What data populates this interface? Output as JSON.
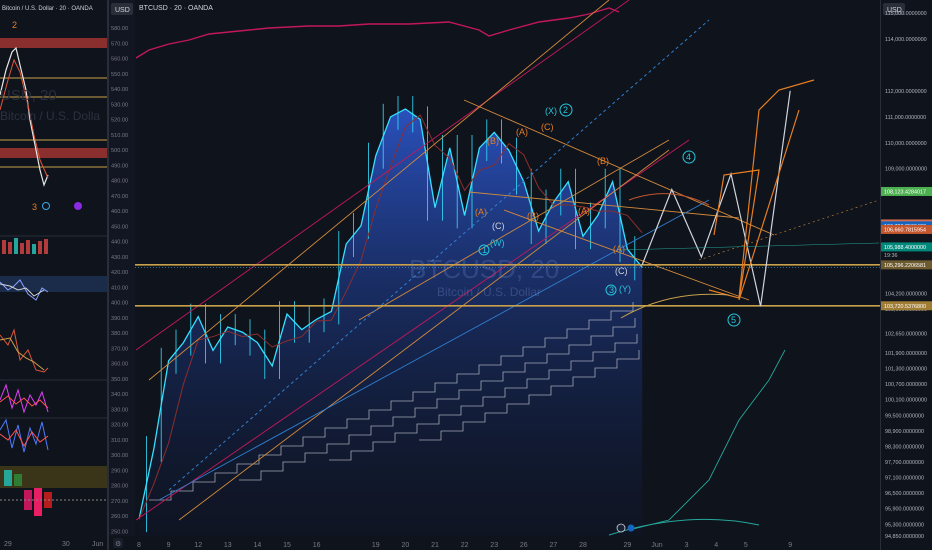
{
  "left_panel": {
    "title": "Bitcoin / U.S. Dollar · 20 · OANDA",
    "watermark_symbol": "USD, 20",
    "watermark_name": "Bitcoin / U.S. Dolla",
    "wave_top": "2",
    "wave_bottom": "3",
    "x_labels": [
      "29",
      "30",
      "Jun"
    ]
  },
  "main_panel": {
    "symbol": "BTCUSD · 20 · OANDA",
    "currency": "USD",
    "watermark_symbol": "BTCUSD, 20",
    "watermark_name": "Bitcoin / U.S. Dollar",
    "wave_labels": {
      "X": "(X)",
      "two": "2",
      "B_top": "(B)",
      "A_top": "(A)",
      "C_top": "(C)",
      "B_right": "(B)",
      "A_mid": "(A)",
      "B_mid": "(B)",
      "A_left": "(A)",
      "C_left": "(C)",
      "W": "(W)",
      "one": "1",
      "A_right": "(A)",
      "C_right": "(C)",
      "three": "3",
      "Y": "(Y)",
      "four": "4",
      "five": "5"
    }
  },
  "right_axis": {
    "label": "USD",
    "ticks": [
      {
        "label": "115,000.0000000",
        "v": 115000
      },
      {
        "label": "114,000.0000000",
        "v": 114000
      },
      {
        "label": "112,000.0000000",
        "v": 112000
      },
      {
        "label": "111,000.0000000",
        "v": 111000
      },
      {
        "label": "110,000.0000000",
        "v": 110000
      },
      {
        "label": "109,000.0000000",
        "v": 109000
      },
      {
        "label": "104,200.0000000",
        "v": 104200
      },
      {
        "label": "103,600.0000000",
        "v": 103600
      },
      {
        "label": "102,650.0000000",
        "v": 102650
      },
      {
        "label": "101,900.0000000",
        "v": 101900
      },
      {
        "label": "101,300.0000000",
        "v": 101300
      },
      {
        "label": "100,700.0000000",
        "v": 100700
      },
      {
        "label": "100,100.0000000",
        "v": 100100
      },
      {
        "label": "99,500.0000000",
        "v": 99500
      },
      {
        "label": "98,900.0000000",
        "v": 98900
      },
      {
        "label": "98,300.0000000",
        "v": 98300
      },
      {
        "label": "97,700.0000000",
        "v": 97700
      },
      {
        "label": "97,100.0000000",
        "v": 97100
      },
      {
        "label": "96,500.0000000",
        "v": 96500
      },
      {
        "label": "95,900.0000000",
        "v": 95900
      },
      {
        "label": "95,300.0000000",
        "v": 95300
      },
      {
        "label": "94,850.0000000",
        "v": 94850
      }
    ],
    "badges": [
      {
        "label": "108,123.4284017",
        "v": 108123,
        "color": "#4caf50"
      },
      {
        "label": "106,872.1460743",
        "v": 106872,
        "color": "#d26a4b"
      },
      {
        "label": "106,799.2509433",
        "v": 106799,
        "color": "#1565c0"
      },
      {
        "label": "106,660.7815954",
        "v": 106660,
        "color": "#c2562f"
      },
      {
        "label": "105,988.4000000",
        "v": 105988,
        "color": "#00897b"
      },
      {
        "label": "105,296.2206581",
        "v": 105296,
        "color": "#6d5b2f"
      },
      {
        "label": "103,720.5376800",
        "v": 103720,
        "color": "#a07d35"
      }
    ],
    "badge_sub": "19:36"
  },
  "chart_data": {
    "type": "line",
    "title": "BTCUSD · 20 · OANDA",
    "xlabel": "",
    "ylabel": "",
    "x_ticks": [
      "8",
      "9",
      "12",
      "13",
      "14",
      "15",
      "16",
      "19",
      "20",
      "21",
      "22",
      "23",
      "26",
      "27",
      "28",
      "29",
      "Jun",
      "3",
      "4",
      "5",
      "9"
    ],
    "x_tick_index": [
      0,
      2,
      4,
      6,
      8,
      10,
      12,
      16,
      18,
      20,
      22,
      24,
      26,
      28,
      30,
      33,
      35,
      37,
      39,
      41,
      44
    ],
    "price_series": {
      "name": "BTCUSD",
      "x_index": [
        0,
        1,
        2,
        3,
        4,
        5,
        6,
        7,
        8,
        9,
        10,
        11,
        12,
        13,
        14,
        15,
        16,
        17,
        18,
        19,
        20,
        21,
        22,
        23,
        24,
        25,
        26,
        27,
        28,
        29,
        30,
        31,
        32,
        33,
        34
      ],
      "values": [
        95500,
        98200,
        101600,
        102300,
        103300,
        102000,
        102900,
        102700,
        102300,
        101400,
        103400,
        102800,
        103200,
        103500,
        106100,
        106800,
        109500,
        111000,
        111300,
        110900,
        107500,
        109800,
        107200,
        109800,
        110400,
        109700,
        108500,
        106600,
        107700,
        108500,
        106400,
        107200,
        108500,
        105900,
        105200
      ]
    },
    "indicator_panel": {
      "axis_ticks": [
        "580.00",
        "570.00",
        "560.00",
        "550.00",
        "540.00",
        "530.00",
        "520.00",
        "510.00",
        "500.00",
        "490.00",
        "480.00",
        "470.00",
        "460.00",
        "450.00",
        "440.00",
        "430.00",
        "420.00",
        "410.00",
        "400.00",
        "390.00",
        "380.00",
        "370.00",
        "360.00",
        "350.00",
        "340.00",
        "330.00",
        "320.00",
        "310.00",
        "300.00",
        "290.00",
        "280.00",
        "270.00",
        "260.00",
        "250.00"
      ]
    },
    "projection": {
      "x_index": [
        34,
        36,
        38,
        40,
        42,
        44
      ],
      "values": [
        105300,
        108200,
        105600,
        108800,
        103700,
        112000
      ]
    },
    "levels": [
      105296,
      103720
    ],
    "y_range": [
      94850,
      115500
    ]
  }
}
